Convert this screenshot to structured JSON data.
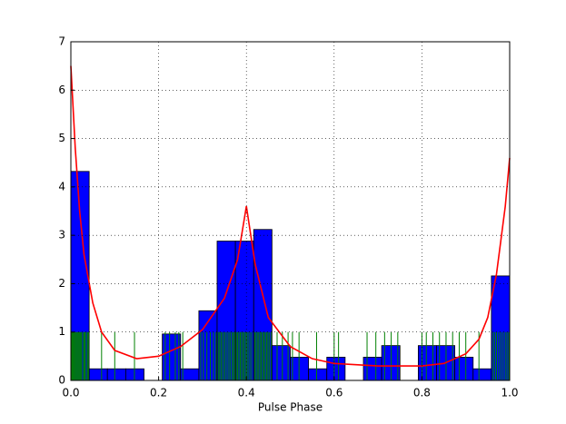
{
  "chart_data": {
    "type": "histogram",
    "xlabel": "Pulse Phase",
    "bins": [
      0,
      0.0417,
      0.0833,
      0.125,
      0.1667,
      0.2083,
      0.25,
      0.2917,
      0.3333,
      0.375,
      0.4167,
      0.4583,
      0.5,
      0.5417,
      0.5833,
      0.625,
      0.6667,
      0.7083,
      0.75,
      0.7917,
      0.8333,
      0.875,
      0.9167,
      0.9583,
      1.0
    ],
    "values": [
      4.32,
      0.24,
      0.24,
      0.24,
      0,
      0.96,
      0.24,
      1.44,
      2.88,
      2.88,
      3.12,
      0.72,
      0.48,
      0.24,
      0.48,
      0,
      0.48,
      0.72,
      0,
      0.72,
      0.72,
      0.48,
      0.24,
      2.16
    ],
    "color": "#0000ff",
    "events": [
      0.002,
      0.004,
      0.006,
      0.008,
      0.01,
      0.012,
      0.014,
      0.016,
      0.018,
      0.02,
      0.022,
      0.024,
      0.027,
      0.03,
      0.032,
      0.035,
      0.038,
      0.04,
      0.07,
      0.1,
      0.145,
      0.215,
      0.225,
      0.238,
      0.246,
      0.255,
      0.296,
      0.302,
      0.31,
      0.318,
      0.325,
      0.331,
      0.336,
      0.339,
      0.342,
      0.345,
      0.349,
      0.352,
      0.356,
      0.36,
      0.363,
      0.367,
      0.37,
      0.373,
      0.377,
      0.38,
      0.383,
      0.386,
      0.389,
      0.392,
      0.395,
      0.398,
      0.401,
      0.404,
      0.408,
      0.412,
      0.419,
      0.422,
      0.425,
      0.428,
      0.431,
      0.434,
      0.437,
      0.44,
      0.443,
      0.446,
      0.449,
      0.452,
      0.456,
      0.47,
      0.482,
      0.495,
      0.505,
      0.52,
      0.56,
      0.6,
      0.61,
      0.675,
      0.695,
      0.715,
      0.73,
      0.745,
      0.8,
      0.81,
      0.825,
      0.84,
      0.855,
      0.87,
      0.885,
      0.9,
      0.93,
      0.962,
      0.966,
      0.97,
      0.975,
      0.98,
      0.985,
      0.99,
      0.994,
      0.998
    ],
    "rug_height": 1,
    "rug_color": "#008000",
    "curve": {
      "color": "#ff0000",
      "x": [
        0,
        0.01,
        0.02,
        0.03,
        0.05,
        0.07,
        0.1,
        0.15,
        0.2,
        0.25,
        0.3,
        0.35,
        0.38,
        0.4,
        0.42,
        0.45,
        0.5,
        0.55,
        0.6,
        0.7,
        0.8,
        0.85,
        0.9,
        0.93,
        0.95,
        0.97,
        0.98,
        0.99,
        1.0
      ],
      "y": [
        6.5,
        4.8,
        3.5,
        2.6,
        1.6,
        1.0,
        0.62,
        0.45,
        0.5,
        0.7,
        1.05,
        1.7,
        2.5,
        3.6,
        2.4,
        1.3,
        0.7,
        0.45,
        0.35,
        0.3,
        0.3,
        0.35,
        0.55,
        0.85,
        1.3,
        2.2,
        2.9,
        3.6,
        4.6
      ]
    },
    "xlim": [
      0,
      1.0
    ],
    "ylim": [
      0,
      7
    ],
    "xticks": [
      {
        "value": 0,
        "label": "0.0"
      },
      0.2,
      0.4,
      0.6,
      0.8,
      {
        "value": 1.0,
        "label": "1.0"
      }
    ],
    "yticks": [
      0,
      1,
      2,
      3,
      4,
      5,
      6,
      7
    ],
    "grid": true
  }
}
